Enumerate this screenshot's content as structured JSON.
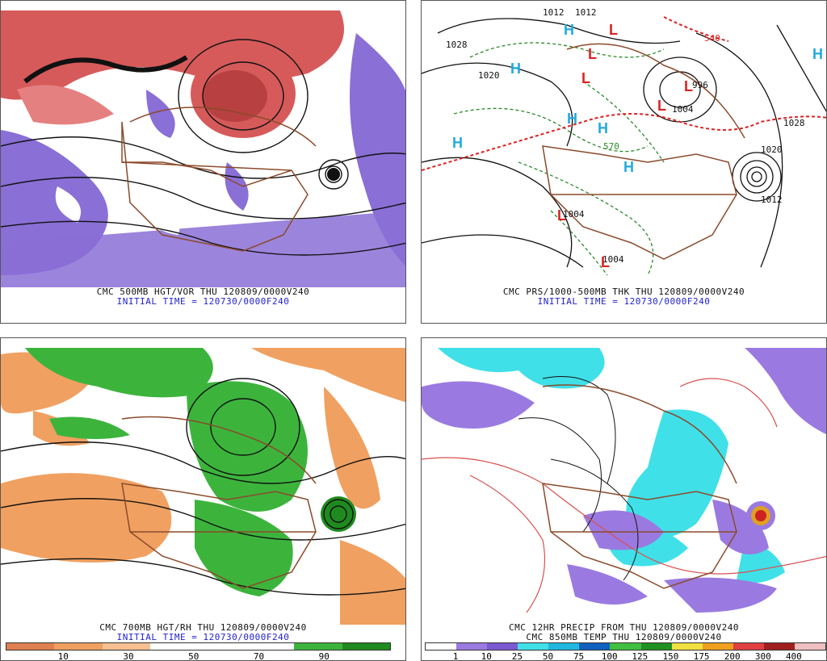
{
  "colors": {
    "vorticity_red": "#d65a5a",
    "vorticity_purple": "#8a6fd6",
    "rh_orange": "#f0a060",
    "rh_green": "#3cb43c",
    "precip_cyan": "#40e0e8",
    "precip_purple": "#9a7ae0",
    "borders": "#8b4a2b",
    "thickness_green": "#2a8a2a",
    "thickness_red": "#dd2222",
    "H_label": "#22aadd",
    "L_label": "#dd2222"
  },
  "panels": {
    "tl": {
      "title": "CMC 500MB HGT/VOR THU 120809/0000V240",
      "subtitle": "INITIAL TIME = 120730/0000F240"
    },
    "tr": {
      "title": "CMC PRS/1000-500MB THK THU 120809/0000V240",
      "subtitle": "INITIAL TIME = 120730/0000F240",
      "labels": [
        {
          "t": "1012"
        },
        {
          "t": "1012"
        },
        {
          "t": "1028"
        },
        {
          "t": "1020"
        },
        {
          "t": "996"
        },
        {
          "t": "1004"
        },
        {
          "t": "1028"
        },
        {
          "t": "1020"
        },
        {
          "t": "1012"
        },
        {
          "t": "1004"
        },
        {
          "t": "1004"
        },
        {
          "t": "540"
        },
        {
          "t": "570"
        }
      ],
      "highs": [
        "H",
        "H",
        "H",
        "H",
        "H",
        "H",
        "H"
      ],
      "lows": [
        "L",
        "L",
        "L",
        "L",
        "L",
        "L",
        "L"
      ]
    },
    "bl": {
      "title": "CMC 700MB HGT/RH THU 120809/0000V240",
      "subtitle": "INITIAL TIME = 120730/0000F240",
      "legend_ticks": [
        "10",
        "30",
        "50",
        "70",
        "90"
      ]
    },
    "br": {
      "title": "CMC 12HR PRECIP FROM THU 120809/0000V240",
      "subtitle": "CMC 850MB TEMP THU 120809/0000V240",
      "legend_ticks": [
        "1",
        "10",
        "25",
        "50",
        "75",
        "100",
        "125",
        "150",
        "175",
        "200",
        "300",
        "400"
      ]
    }
  }
}
